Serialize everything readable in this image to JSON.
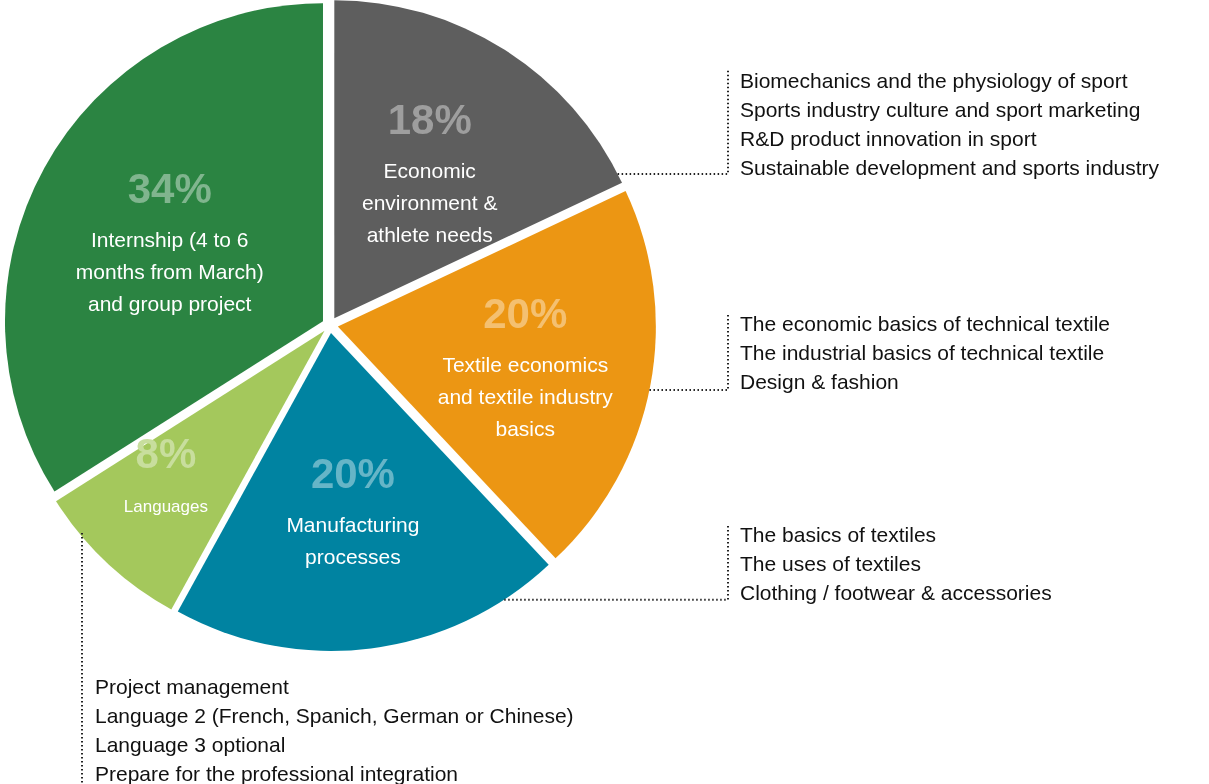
{
  "chart_data": {
    "type": "pie",
    "categories": [
      "Economic environment & athlete needs",
      "Textile economics and textile industry basics",
      "Manufacturing processes",
      "Languages",
      "Internship (4 to 6 months from March) and group project"
    ],
    "values": [
      18,
      20,
      20,
      8,
      34
    ],
    "colors": [
      "#5e5e5e",
      "#ec9613",
      "#0083a1",
      "#a4c85c",
      "#2b8442"
    ],
    "value_labels": [
      "18%",
      "20%",
      "20%",
      "8%",
      "34%"
    ],
    "annotations": [
      "Biomechanics and the physiology of sport\nSports industry culture and sport marketing\nR&D product innovation in sport\nSustainable development and sports industry",
      "The economic basics of technical textile\nThe industrial basics of technical textile\nDesign & fashion",
      "The basics of textiles\nThe uses of textiles\nClothing / footwear & accessories",
      "Project management\nLanguage 2 (French, Spanich, German or Chinese)\nLanguage 3 optional\nPrepare for the professional integration"
    ]
  }
}
